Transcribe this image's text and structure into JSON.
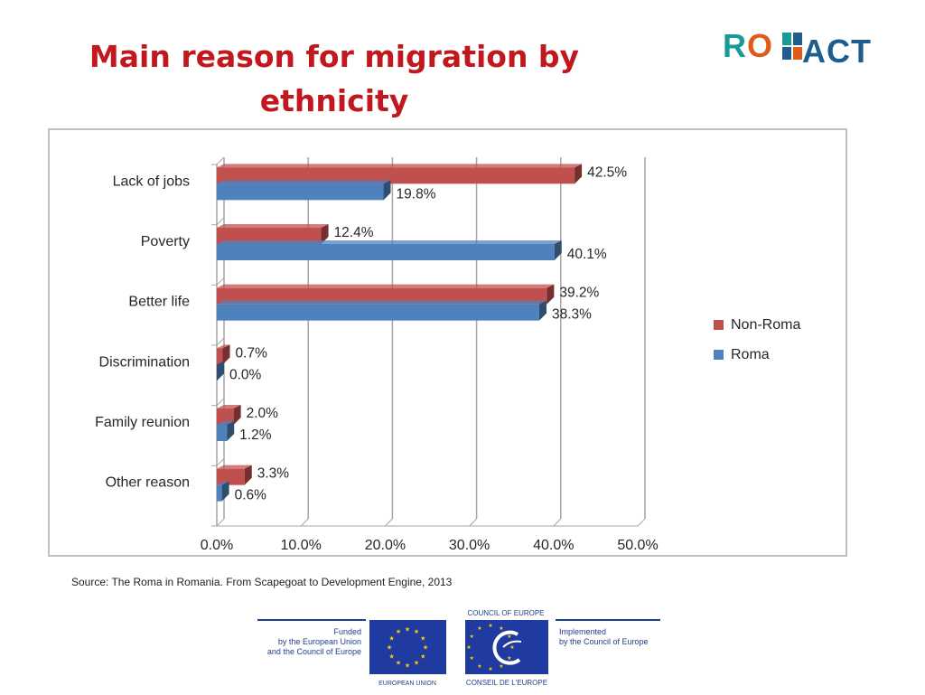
{
  "slide": {
    "title": "Main reason for migration by ethnicity",
    "source": "Source: The Roma in Romania. From Scapegoat to Development Engine, 2013"
  },
  "logo": {
    "part1_r": "R",
    "part1_o": "O",
    "part2": "ACT"
  },
  "footer": {
    "funded_line1": "Funded",
    "funded_line2": "by the European Union",
    "funded_line3": "and the Council of Europe",
    "eu_label": "EUROPEAN UNION",
    "coe_top": "COUNCIL OF EUROPE",
    "coe_bottom": "CONSEIL DE L'EUROPE",
    "implemented_line1": "Implemented",
    "implemented_line2": "by the Council of Europe"
  },
  "colors": {
    "non_roma": "#c0504d",
    "roma": "#4f81bd",
    "title": "#c0181e"
  },
  "chart_data": {
    "type": "bar",
    "orientation": "horizontal",
    "categories": [
      "Lack of jobs",
      "Poverty",
      "Better life",
      "Discrimination",
      "Family reunion",
      "Other reason"
    ],
    "series": [
      {
        "name": "Non-Roma",
        "values": [
          42.5,
          12.4,
          39.2,
          0.7,
          2.0,
          3.3
        ],
        "labels": [
          "42.5%",
          "12.4%",
          "39.2%",
          "0.7%",
          "2.0%",
          "3.3%"
        ]
      },
      {
        "name": "Roma",
        "values": [
          19.8,
          40.1,
          38.3,
          0.0,
          1.2,
          0.6
        ],
        "labels": [
          "19.8%",
          "40.1%",
          "38.3%",
          "0.0%",
          "1.2%",
          "0.6%"
        ]
      }
    ],
    "xlim": [
      0,
      50
    ],
    "xticks": [
      0,
      10,
      20,
      30,
      40,
      50
    ],
    "xtick_labels": [
      "0.0%",
      "10.0%",
      "20.0%",
      "30.0%",
      "40.0%",
      "50.0%"
    ],
    "grid": "vertical",
    "legend_position": "right",
    "style": "3d-bars"
  }
}
